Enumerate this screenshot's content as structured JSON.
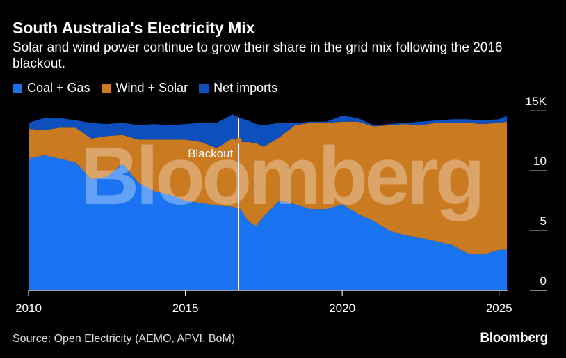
{
  "header": {
    "title": "South Australia's Electricity Mix",
    "subtitle": "Solar and wind power continue to grow their share in the grid mix following the 2016 blackout."
  },
  "footer": {
    "source": "Source: Open Electricity (AEMO, APVI, BoM)",
    "brand": "Bloomberg"
  },
  "watermark": "Bloomberg",
  "colors": {
    "coal_gas": "#1a74f2",
    "wind_solar": "#ca7a21",
    "net_imports": "#0e4fbe",
    "background": "#000000"
  },
  "chart_data": {
    "type": "area",
    "stacked": true,
    "x": [
      2010.0,
      2010.5,
      2011.0,
      2011.5,
      2012.0,
      2012.5,
      2013.0,
      2013.5,
      2014.0,
      2014.5,
      2015.0,
      2015.5,
      2016.0,
      2016.5,
      2016.75,
      2017.0,
      2017.25,
      2017.5,
      2018.0,
      2018.5,
      2019.0,
      2019.5,
      2020.0,
      2020.5,
      2021.0,
      2021.5,
      2022.0,
      2022.5,
      2023.0,
      2023.5,
      2024.0,
      2024.5,
      2025.0,
      2025.25
    ],
    "series": [
      {
        "name": "Coal + Gas",
        "values": [
          11.0,
          11.3,
          11.0,
          10.7,
          9.3,
          9.5,
          10.6,
          9.0,
          8.3,
          8.0,
          7.5,
          7.3,
          7.1,
          7.0,
          6.8,
          5.8,
          5.4,
          6.2,
          7.5,
          7.2,
          6.8,
          6.8,
          7.2,
          6.4,
          5.8,
          5.0,
          4.6,
          4.4,
          4.1,
          3.8,
          3.1,
          3.0,
          3.4,
          3.4
        ]
      },
      {
        "name": "Wind + Solar",
        "values": [
          2.5,
          2.1,
          2.6,
          2.9,
          3.4,
          3.4,
          2.4,
          3.6,
          4.3,
          4.6,
          5.1,
          5.1,
          4.8,
          5.7,
          5.6,
          6.6,
          6.9,
          5.8,
          5.3,
          6.6,
          7.2,
          7.2,
          6.9,
          7.7,
          7.9,
          8.8,
          9.3,
          9.4,
          9.9,
          10.2,
          10.9,
          10.9,
          10.6,
          10.7
        ]
      },
      {
        "name": "Net imports",
        "values": [
          0.5,
          1.0,
          0.8,
          0.6,
          1.3,
          1.0,
          1.0,
          1.2,
          1.3,
          1.2,
          1.3,
          1.6,
          2.1,
          2.0,
          2.0,
          1.8,
          1.6,
          1.8,
          1.2,
          0.2,
          0.1,
          0.1,
          0.5,
          0.3,
          0.1,
          0.1,
          0.1,
          0.3,
          0.2,
          0.3,
          0.3,
          0.3,
          0.3,
          0.5
        ]
      }
    ],
    "x_ticks": [
      2010,
      2015,
      2020,
      2025
    ],
    "x_tick_labels": [
      "2010",
      "2015",
      "2020",
      "2025"
    ],
    "y_ticks": [
      0,
      5,
      10,
      15
    ],
    "y_tick_labels": [
      "0",
      "5",
      "10",
      "15K"
    ],
    "xlim": [
      2010.0,
      2025.25
    ],
    "ylim": [
      0,
      16
    ],
    "annotation": {
      "label": "Blackout",
      "x": 2016.7,
      "y": 12.5
    },
    "legend_position": "top-left",
    "grid": false
  }
}
